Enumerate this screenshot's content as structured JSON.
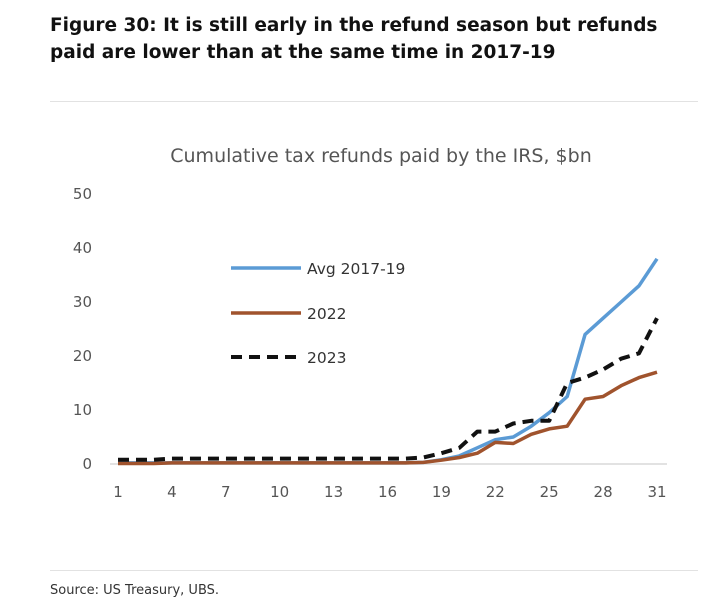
{
  "figure": {
    "title_line1": "Figure 30: It is still early in the refund season but refunds",
    "title_line2": "paid are lower than at the same time in 2017-19",
    "source": "Source: US Treasury, UBS."
  },
  "chart_data": {
    "type": "line",
    "title": "Cumulative tax refunds paid by the IRS, $bn",
    "xlabel": "",
    "ylabel": "",
    "xlim": [
      1,
      31
    ],
    "ylim": [
      0,
      50
    ],
    "x_ticks": [
      1,
      4,
      7,
      10,
      13,
      16,
      19,
      22,
      25,
      28,
      31
    ],
    "y_ticks": [
      0,
      10,
      20,
      30,
      40,
      50
    ],
    "grid": false,
    "legend_position": "center-left",
    "x": [
      1,
      2,
      3,
      4,
      5,
      6,
      7,
      8,
      9,
      10,
      11,
      12,
      13,
      14,
      15,
      16,
      17,
      18,
      19,
      20,
      21,
      22,
      23,
      24,
      25,
      26,
      27,
      28,
      29,
      30,
      31
    ],
    "series": [
      {
        "name": "Avg 2017-19",
        "color": "#5b9bd5",
        "dash": "solid",
        "values": [
          0.2,
          0.2,
          0.2,
          0.2,
          0.2,
          0.2,
          0.2,
          0.2,
          0.2,
          0.2,
          0.2,
          0.2,
          0.2,
          0.2,
          0.2,
          0.2,
          0.2,
          0.3,
          0.8,
          1.5,
          3.0,
          4.5,
          5.0,
          7.0,
          9.5,
          12.5,
          24.0,
          27.0,
          30.0,
          33.0,
          38.0
        ]
      },
      {
        "name": "2022",
        "color": "#a0532d",
        "dash": "solid",
        "values": [
          0.1,
          0.1,
          0.1,
          0.2,
          0.2,
          0.2,
          0.2,
          0.2,
          0.2,
          0.2,
          0.2,
          0.2,
          0.2,
          0.2,
          0.2,
          0.2,
          0.2,
          0.3,
          0.7,
          1.2,
          2.0,
          4.0,
          3.8,
          5.5,
          6.5,
          7.0,
          12.0,
          12.5,
          14.5,
          16.0,
          17.0
        ]
      },
      {
        "name": "2023",
        "color": "#111111",
        "dash": "dashed",
        "values": [
          0.8,
          0.8,
          0.8,
          1.0,
          1.0,
          1.0,
          1.0,
          1.0,
          1.0,
          1.0,
          1.0,
          1.0,
          1.0,
          1.0,
          1.0,
          1.0,
          1.0,
          1.2,
          2.0,
          3.0,
          6.0,
          6.0,
          7.5,
          8.0,
          8.0,
          15.0,
          16.0,
          17.5,
          19.5,
          20.5,
          27.0
        ]
      }
    ]
  }
}
